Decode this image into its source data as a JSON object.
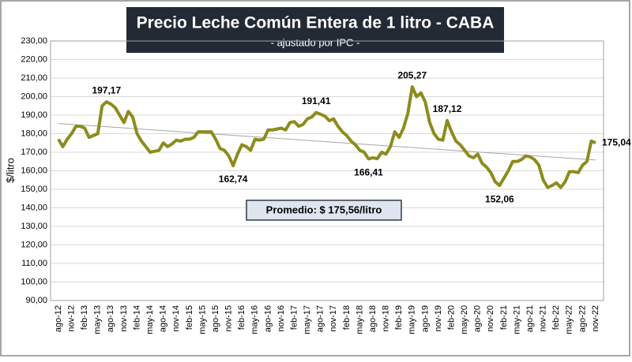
{
  "chart_data": {
    "type": "line",
    "title": "Precio Leche Común Entera de 1 litro - CABA",
    "subtitle": "- ajustado por IPC -",
    "y_axis_label": "$/litro",
    "annotations": [
      "Promedio: $ 175,56/litro"
    ],
    "categories": [
      "ago-12",
      null,
      null,
      "nov-12",
      null,
      null,
      "feb-13",
      null,
      null,
      "may-13",
      null,
      null,
      "ago-13",
      null,
      null,
      "nov-13",
      null,
      null,
      "feb-14",
      null,
      null,
      "may-14",
      null,
      null,
      "ago-14",
      null,
      null,
      "nov-14",
      null,
      null,
      "feb-15",
      null,
      null,
      "may-15",
      null,
      null,
      "ago-15",
      null,
      null,
      "nov-15",
      null,
      null,
      "feb-16",
      null,
      null,
      "may-16",
      null,
      null,
      "ago-16",
      null,
      null,
      "nov-16",
      null,
      null,
      "feb-17",
      null,
      null,
      "may-17",
      null,
      null,
      "ago-17",
      null,
      null,
      "nov-17",
      null,
      null,
      "feb-18",
      null,
      null,
      "may-18",
      null,
      null,
      "ago-18",
      null,
      null,
      "nov-18",
      null,
      null,
      "feb-19",
      null,
      null,
      "may-19",
      null,
      null,
      "ago-19",
      null,
      null,
      "nov-19",
      null,
      null,
      "feb-20",
      null,
      null,
      "may-20",
      null,
      null,
      "ago-20",
      null,
      null,
      "nov-20",
      null,
      null,
      "feb-21",
      null,
      null,
      "may-21",
      null,
      null,
      "ago-21",
      null,
      null,
      "nov-21",
      null,
      null,
      "feb-22",
      null,
      null,
      "may-22",
      null,
      null,
      "ago-22",
      null,
      null,
      "nov-22"
    ],
    "series": [
      {
        "color": "#8c8c1e",
        "values": [
          177,
          173,
          177,
          180,
          184,
          184,
          183,
          178,
          179,
          180,
          195,
          197.17,
          196,
          194,
          190,
          186,
          192,
          189,
          180,
          176,
          173,
          170,
          170.5,
          171,
          175,
          173,
          174.5,
          176.5,
          176,
          177,
          177,
          178,
          181,
          181,
          181,
          181,
          177,
          172,
          171,
          168,
          162.74,
          169,
          174,
          173,
          171,
          177,
          176.5,
          177,
          182,
          182,
          182.5,
          183,
          182,
          186,
          186.5,
          184,
          185,
          188,
          189,
          191.41,
          190.5,
          189.5,
          187,
          188,
          184,
          181,
          179,
          176,
          174,
          171,
          170,
          166.41,
          167,
          166.5,
          170,
          169,
          173,
          181,
          178,
          183,
          191,
          205.27,
          200,
          202,
          197,
          186,
          180,
          177,
          176.5,
          187.12,
          181,
          176,
          174,
          171,
          168,
          167,
          169,
          164,
          162,
          159,
          154,
          152.06,
          156,
          160,
          165,
          165,
          166,
          168,
          167.5,
          166,
          163,
          155,
          151,
          152,
          153.5,
          151,
          154,
          159.5,
          159.5,
          159,
          163,
          165,
          176,
          175.04
        ],
        "value_labels": [
          null,
          null,
          null,
          null,
          null,
          null,
          null,
          null,
          null,
          null,
          null,
          "197,17",
          null,
          null,
          null,
          null,
          null,
          null,
          null,
          null,
          null,
          null,
          null,
          null,
          null,
          null,
          null,
          null,
          null,
          null,
          null,
          null,
          null,
          null,
          null,
          null,
          null,
          null,
          null,
          null,
          "162,74",
          null,
          null,
          null,
          null,
          null,
          null,
          null,
          null,
          null,
          null,
          null,
          null,
          null,
          null,
          null,
          null,
          null,
          null,
          "191,41",
          null,
          null,
          null,
          null,
          null,
          null,
          null,
          null,
          null,
          null,
          null,
          "166,41",
          null,
          null,
          null,
          null,
          null,
          null,
          null,
          null,
          null,
          "205,27",
          null,
          null,
          null,
          null,
          null,
          null,
          null,
          "187,12",
          null,
          null,
          null,
          null,
          null,
          null,
          null,
          null,
          null,
          null,
          null,
          "152,06",
          null,
          null,
          null,
          null,
          null,
          null,
          null,
          null,
          null,
          null,
          null,
          null,
          null,
          null,
          null,
          null,
          null,
          null,
          null,
          null,
          null,
          "175,04"
        ]
      }
    ],
    "trend_line": {
      "start": 185.5,
      "end": 165.8,
      "color": "#a6a6a6"
    },
    "ylim": [
      90,
      230
    ],
    "yticks": [
      {
        "value": 90,
        "label": "90,00"
      },
      {
        "value": 100,
        "label": "100,00"
      },
      {
        "value": 110,
        "label": "110,00"
      },
      {
        "value": 120,
        "label": "120,00"
      },
      {
        "value": 130,
        "label": "130,00"
      },
      {
        "value": 140,
        "label": "140,00"
      },
      {
        "value": 150,
        "label": "150,00"
      },
      {
        "value": 160,
        "label": "160,00"
      },
      {
        "value": 170,
        "label": "170,00"
      },
      {
        "value": 180,
        "label": "180,00"
      },
      {
        "value": 190,
        "label": "190,00"
      },
      {
        "value": 200,
        "label": "200,00"
      },
      {
        "value": 210,
        "label": "210,00"
      },
      {
        "value": 220,
        "label": "220,00"
      },
      {
        "value": 230,
        "label": "230,00"
      }
    ],
    "grid": true
  }
}
